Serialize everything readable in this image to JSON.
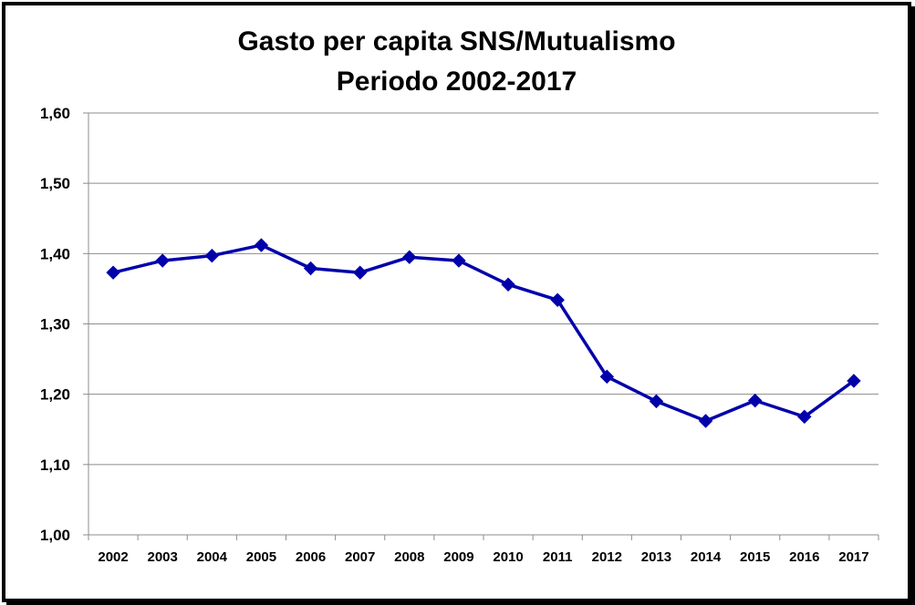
{
  "chart_data": {
    "type": "line",
    "title_line1": "Gasto per capita SNS/Mutualismo",
    "title_line2": "Periodo 2002-2017",
    "xlabel": "",
    "ylabel": "",
    "categories": [
      "2002",
      "2003",
      "2004",
      "2005",
      "2006",
      "2007",
      "2008",
      "2009",
      "2010",
      "2011",
      "2012",
      "2013",
      "2014",
      "2015",
      "2016",
      "2017"
    ],
    "series": [
      {
        "values": [
          1.373,
          1.39,
          1.397,
          1.412,
          1.379,
          1.373,
          1.395,
          1.39,
          1.356,
          1.334,
          1.225,
          1.19,
          1.162,
          1.191,
          1.168,
          1.219
        ]
      }
    ],
    "ylim": [
      1.0,
      1.6
    ],
    "yticks": [
      "1,00",
      "1,10",
      "1,20",
      "1,30",
      "1,40",
      "1,50",
      "1,60"
    ],
    "grid": true,
    "line_color": "#0000AA",
    "marker": "diamond"
  }
}
